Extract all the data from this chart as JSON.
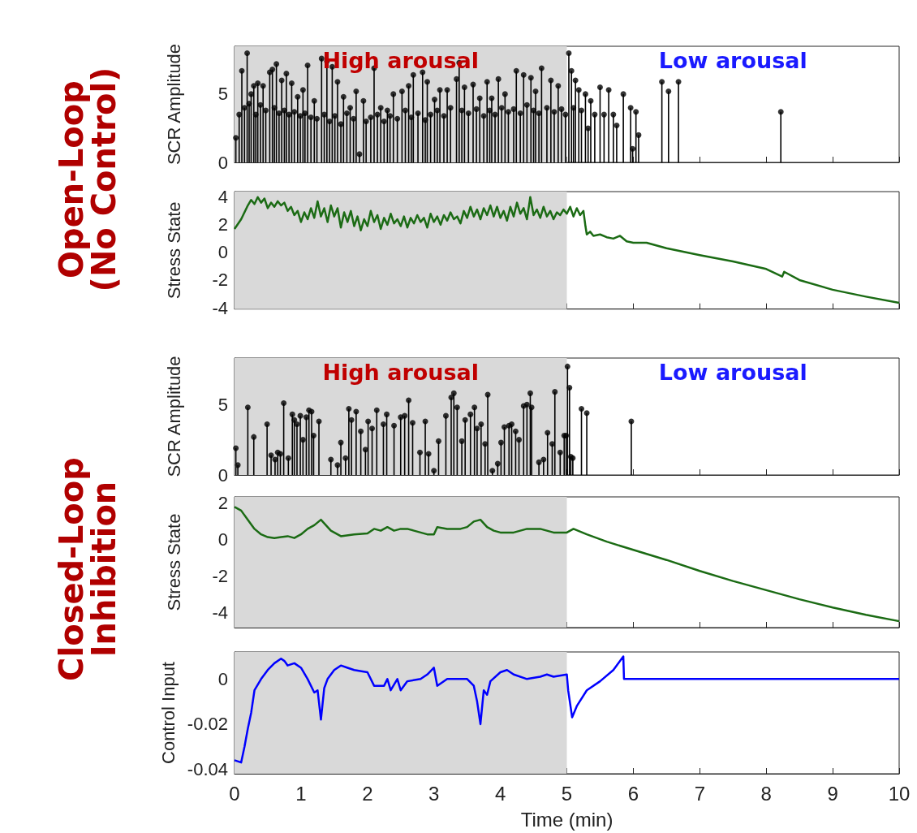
{
  "chart_data": [
    {
      "type": "lollipop",
      "ylabel": "SCR Amplitude",
      "annotations": [
        "Open-Loop (No Control)",
        "High arousal",
        "Low arousal"
      ],
      "xlim": [
        0,
        10
      ],
      "xticks": [
        0,
        1,
        2,
        3,
        4,
        5,
        6,
        7,
        8,
        9,
        10
      ],
      "ylim": [
        0,
        8.5
      ],
      "yticks": [
        0,
        5
      ],
      "tick_labels": "y",
      "grid": false,
      "marker": "circle",
      "bands": [
        {
          "axis": "x",
          "from": 0,
          "to": 5,
          "color": "#d9d9d9"
        }
      ],
      "series": [
        {
          "color": "#000000",
          "x": [
            0.02,
            0.07,
            0.11,
            0.15,
            0.19,
            0.22,
            0.25,
            0.29,
            0.32,
            0.35,
            0.39,
            0.43,
            0.47,
            0.53,
            0.57,
            0.6,
            0.63,
            0.67,
            0.71,
            0.75,
            0.78,
            0.82,
            0.86,
            0.9,
            0.95,
            0.99,
            1.03,
            1.06,
            1.1,
            1.15,
            1.2,
            1.24,
            1.31,
            1.35,
            1.39,
            1.43,
            1.47,
            1.51,
            1.55,
            1.6,
            1.64,
            1.69,
            1.74,
            1.79,
            1.83,
            1.88,
            1.94,
            1.98,
            2.05,
            2.1,
            2.15,
            2.2,
            2.25,
            2.3,
            2.34,
            2.39,
            2.45,
            2.52,
            2.57,
            2.62,
            2.66,
            2.69,
            2.76,
            2.83,
            2.87,
            2.9,
            2.95,
            3.01,
            3.05,
            3.09,
            3.15,
            3.2,
            3.25,
            3.34,
            3.38,
            3.42,
            3.46,
            3.52,
            3.59,
            3.64,
            3.69,
            3.75,
            3.8,
            3.84,
            3.87,
            3.92,
            3.97,
            4.02,
            4.07,
            4.12,
            4.2,
            4.24,
            4.3,
            4.35,
            4.4,
            4.46,
            4.5,
            4.53,
            4.58,
            4.62,
            4.7,
            4.76,
            4.81,
            4.87,
            4.92,
            4.98,
            5.03,
            5.07,
            5.1,
            5.13,
            5.18,
            5.22,
            5.28,
            5.32,
            5.36,
            5.42,
            5.5,
            5.56,
            5.63,
            5.7,
            5.75,
            5.85,
            5.96,
            5.99,
            6.04,
            6.08,
            6.43,
            6.53,
            6.68,
            8.22
          ],
          "values": [
            1.8,
            3.5,
            6.7,
            4.0,
            8.0,
            4.3,
            5.0,
            5.6,
            3.5,
            5.8,
            4.2,
            5.6,
            3.8,
            6.6,
            6.8,
            4.0,
            7.2,
            3.6,
            6.0,
            3.8,
            6.5,
            3.5,
            5.8,
            3.7,
            4.8,
            3.4,
            5.3,
            3.6,
            7.1,
            3.3,
            4.5,
            3.2,
            7.6,
            3.5,
            7.4,
            3.0,
            7.0,
            3.4,
            5.9,
            2.8,
            4.8,
            3.6,
            4.0,
            3.2,
            5.2,
            0.6,
            4.5,
            3.0,
            3.3,
            6.9,
            3.5,
            4.0,
            3.0,
            3.8,
            3.4,
            5.0,
            3.2,
            5.2,
            3.8,
            5.6,
            3.3,
            6.4,
            3.6,
            6.6,
            3.1,
            5.9,
            3.5,
            4.6,
            3.8,
            5.3,
            3.4,
            5.3,
            4.0,
            6.1,
            7.3,
            3.8,
            5.5,
            3.6,
            5.7,
            3.9,
            4.7,
            3.4,
            5.9,
            3.8,
            4.7,
            3.5,
            6.1,
            4.0,
            5.0,
            3.7,
            3.9,
            6.7,
            3.6,
            6.4,
            4.2,
            6.2,
            3.8,
            5.2,
            3.6,
            6.9,
            4.0,
            6.0,
            3.7,
            5.6,
            3.9,
            3.5,
            8.0,
            6.7,
            4.0,
            6.0,
            5.3,
            3.8,
            5.0,
            2.5,
            4.5,
            3.5,
            5.5,
            3.5,
            5.3,
            3.5,
            2.7,
            5.0,
            4.0,
            1.0,
            3.7,
            2.0,
            5.9,
            5.2,
            5.9,
            3.7
          ]
        }
      ]
    },
    {
      "type": "line",
      "ylabel": "Stress State",
      "xlim": [
        0,
        10
      ],
      "xticks": [
        0,
        1,
        2,
        3,
        4,
        5,
        6,
        7,
        8,
        9,
        10
      ],
      "ylim": [
        -4.1,
        4.4
      ],
      "yticks": [
        -4,
        -2,
        0,
        2,
        4
      ],
      "tick_labels": "y",
      "grid": false,
      "line_style": "solid",
      "bands": [
        {
          "axis": "x",
          "from": 0,
          "to": 5,
          "color": "#d9d9d9"
        }
      ],
      "series": [
        {
          "color": "#1b6b14",
          "x": [
            0,
            0.1,
            0.2,
            0.25,
            0.3,
            0.35,
            0.4,
            0.45,
            0.5,
            0.55,
            0.6,
            0.65,
            0.7,
            0.75,
            0.8,
            0.85,
            0.9,
            0.95,
            1.0,
            1.05,
            1.1,
            1.15,
            1.2,
            1.25,
            1.3,
            1.35,
            1.4,
            1.45,
            1.5,
            1.55,
            1.6,
            1.65,
            1.7,
            1.75,
            1.8,
            1.85,
            1.9,
            1.95,
            2.0,
            2.05,
            2.1,
            2.15,
            2.2,
            2.25,
            2.3,
            2.35,
            2.4,
            2.45,
            2.5,
            2.55,
            2.6,
            2.65,
            2.7,
            2.75,
            2.8,
            2.85,
            2.9,
            2.95,
            3.0,
            3.05,
            3.1,
            3.15,
            3.2,
            3.25,
            3.3,
            3.35,
            3.4,
            3.45,
            3.5,
            3.55,
            3.6,
            3.65,
            3.7,
            3.75,
            3.8,
            3.85,
            3.9,
            3.95,
            4.0,
            4.05,
            4.1,
            4.15,
            4.2,
            4.25,
            4.3,
            4.35,
            4.4,
            4.45,
            4.5,
            4.55,
            4.6,
            4.65,
            4.7,
            4.75,
            4.8,
            4.85,
            4.9,
            4.95,
            5.0,
            5.05,
            5.1,
            5.15,
            5.2,
            5.25,
            5.28,
            5.3,
            5.35,
            5.4,
            5.5,
            5.6,
            5.7,
            5.8,
            5.9,
            6.0,
            6.2,
            6.5,
            7.0,
            7.5,
            8.0,
            8.24,
            8.27,
            8.5,
            9.0,
            9.5,
            10
          ],
          "values": [
            1.7,
            2.4,
            3.4,
            3.8,
            3.5,
            4.0,
            3.6,
            3.9,
            3.2,
            3.6,
            3.3,
            3.7,
            3.4,
            3.6,
            3.0,
            3.3,
            2.7,
            3.0,
            2.2,
            2.9,
            2.4,
            3.2,
            2.5,
            3.7,
            2.6,
            3.2,
            2.2,
            3.4,
            2.6,
            3.2,
            1.8,
            2.9,
            2.2,
            3.0,
            1.9,
            2.6,
            1.6,
            2.4,
            1.9,
            3.0,
            2.2,
            2.7,
            1.7,
            2.5,
            2.0,
            2.8,
            2.1,
            2.4,
            1.9,
            2.6,
            1.8,
            2.5,
            2.1,
            2.7,
            2.2,
            2.5,
            1.8,
            2.8,
            2.2,
            2.6,
            2.0,
            2.7,
            2.3,
            2.9,
            2.4,
            2.6,
            2.1,
            3.0,
            2.5,
            3.3,
            2.6,
            3.1,
            2.4,
            3.2,
            2.7,
            3.4,
            2.6,
            3.3,
            2.5,
            3.0,
            2.3,
            3.3,
            2.6,
            3.6,
            2.8,
            3.2,
            2.4,
            4.0,
            2.7,
            3.1,
            2.5,
            3.3,
            2.6,
            3.0,
            2.4,
            2.9,
            2.7,
            3.1,
            2.8,
            3.3,
            2.6,
            3.2,
            2.7,
            3.0,
            1.9,
            1.3,
            1.5,
            1.2,
            1.3,
            1.1,
            1.0,
            1.2,
            0.8,
            0.7,
            0.7,
            0.3,
            -0.2,
            -0.65,
            -1.2,
            -1.75,
            -1.4,
            -2.0,
            -2.7,
            -3.2,
            -3.65
          ]
        }
      ]
    },
    {
      "type": "lollipop",
      "ylabel": "SCR Amplitude",
      "annotations": [
        "Closed-Loop Inhibition",
        "High arousal",
        "Low arousal"
      ],
      "xlim": [
        0,
        10
      ],
      "xticks": [
        0,
        1,
        2,
        3,
        4,
        5,
        6,
        7,
        8,
        9,
        10
      ],
      "ylim": [
        0,
        8.3
      ],
      "yticks": [
        0,
        5
      ],
      "tick_labels": "y",
      "grid": false,
      "marker": "circle",
      "bands": [
        {
          "axis": "x",
          "from": 0,
          "to": 5,
          "color": "#d9d9d9"
        }
      ],
      "series": [
        {
          "color": "#000000",
          "x": [
            0.02,
            0.05,
            0.2,
            0.29,
            0.49,
            0.55,
            0.61,
            0.65,
            0.69,
            0.74,
            0.81,
            0.87,
            0.9,
            0.94,
            0.99,
            1.03,
            1.08,
            1.12,
            1.16,
            1.19,
            1.27,
            1.45,
            1.55,
            1.6,
            1.67,
            1.72,
            1.76,
            1.83,
            1.9,
            1.97,
            2.01,
            2.07,
            2.14,
            2.24,
            2.29,
            2.4,
            2.5,
            2.56,
            2.62,
            2.68,
            2.79,
            2.87,
            2.92,
            3.0,
            3.07,
            3.18,
            3.26,
            3.3,
            3.35,
            3.42,
            3.47,
            3.55,
            3.61,
            3.65,
            3.71,
            3.77,
            3.81,
            3.88,
            3.96,
            4.01,
            4.06,
            4.13,
            4.17,
            4.23,
            4.28,
            4.35,
            4.4,
            4.45,
            4.47,
            4.58,
            4.65,
            4.71,
            4.78,
            4.82,
            4.9,
            4.96,
            4.99,
            5.01,
            5.04,
            5.06,
            5.09,
            5.22,
            5.3,
            5.97
          ],
          "values": [
            1.9,
            0.7,
            4.8,
            2.7,
            3.6,
            1.4,
            1.1,
            1.6,
            1.5,
            5.1,
            1.2,
            4.3,
            3.9,
            3.6,
            4.2,
            2.5,
            4.1,
            4.6,
            4.5,
            2.8,
            3.8,
            1.1,
            0.7,
            2.3,
            1.2,
            4.7,
            3.9,
            4.5,
            3.1,
            1.8,
            3.8,
            3.3,
            4.6,
            3.6,
            4.3,
            3.5,
            4.1,
            4.2,
            5.3,
            3.7,
            1.6,
            3.8,
            1.5,
            0.3,
            2.4,
            4.2,
            5.5,
            5.8,
            4.8,
            2.4,
            3.9,
            4.3,
            4.8,
            3.3,
            3.6,
            2.2,
            5.7,
            0.3,
            0.8,
            2.3,
            3.4,
            3.5,
            3.6,
            3.1,
            2.5,
            4.9,
            5.0,
            5.8,
            4.8,
            0.9,
            1.1,
            3.0,
            2.2,
            5.9,
            1.6,
            2.8,
            2.8,
            7.7,
            6.2,
            1.3,
            1.2,
            4.7,
            4.4,
            3.8
          ]
        }
      ]
    },
    {
      "type": "line",
      "ylabel": "Stress State",
      "xlim": [
        0,
        10
      ],
      "xticks": [
        0,
        1,
        2,
        3,
        4,
        5,
        6,
        7,
        8,
        9,
        10
      ],
      "ylim": [
        -4.8,
        2.35
      ],
      "yticks": [
        -4,
        -2,
        0,
        2
      ],
      "tick_labels": "y",
      "grid": false,
      "line_style": "solid",
      "bands": [
        {
          "axis": "x",
          "from": 0,
          "to": 5,
          "color": "#d9d9d9"
        }
      ],
      "series": [
        {
          "color": "#1b6b14",
          "x": [
            0,
            0.1,
            0.2,
            0.3,
            0.4,
            0.5,
            0.6,
            0.7,
            0.8,
            0.9,
            1.0,
            1.1,
            1.2,
            1.3,
            1.35,
            1.45,
            1.6,
            1.8,
            2.0,
            2.1,
            2.2,
            2.3,
            2.4,
            2.5,
            2.6,
            2.7,
            2.8,
            2.9,
            3.0,
            3.05,
            3.2,
            3.4,
            3.5,
            3.6,
            3.7,
            3.8,
            3.9,
            4.0,
            4.2,
            4.4,
            4.6,
            4.8,
            5.0,
            5.1,
            5.3,
            5.6,
            6.0,
            6.5,
            7.0,
            7.5,
            8.0,
            8.5,
            9.0,
            9.5,
            10
          ],
          "values": [
            1.8,
            1.6,
            1.1,
            0.6,
            0.3,
            0.15,
            0.1,
            0.15,
            0.2,
            0.1,
            0.3,
            0.6,
            0.8,
            1.1,
            0.9,
            0.5,
            0.2,
            0.3,
            0.35,
            0.6,
            0.5,
            0.7,
            0.5,
            0.6,
            0.6,
            0.5,
            0.4,
            0.3,
            0.3,
            0.7,
            0.6,
            0.6,
            0.7,
            1.0,
            1.1,
            0.7,
            0.5,
            0.4,
            0.4,
            0.6,
            0.6,
            0.4,
            0.4,
            0.6,
            0.3,
            -0.1,
            -0.55,
            -1.1,
            -1.7,
            -2.25,
            -2.75,
            -3.25,
            -3.7,
            -4.1,
            -4.45
          ]
        }
      ]
    },
    {
      "type": "line",
      "xlabel": "Time (min)",
      "ylabel": "Control Input",
      "xlim": [
        0,
        10
      ],
      "xticks": [
        0,
        1,
        2,
        3,
        4,
        5,
        6,
        7,
        8,
        9,
        10
      ],
      "ylim": [
        -0.042,
        0.012
      ],
      "yticks": [
        -0.04,
        -0.02,
        0
      ],
      "grid": false,
      "line_style": "solid",
      "bands": [
        {
          "axis": "x",
          "from": 0,
          "to": 5,
          "color": "#d9d9d9"
        }
      ],
      "series": [
        {
          "color": "#0000ff",
          "x": [
            0,
            0.1,
            0.15,
            0.2,
            0.25,
            0.3,
            0.4,
            0.5,
            0.6,
            0.7,
            0.75,
            0.8,
            0.9,
            1.0,
            1.1,
            1.2,
            1.25,
            1.3,
            1.35,
            1.4,
            1.5,
            1.6,
            1.7,
            1.8,
            2.0,
            2.1,
            2.25,
            2.3,
            2.35,
            2.45,
            2.5,
            2.6,
            2.8,
            2.9,
            3.0,
            3.05,
            3.2,
            3.5,
            3.6,
            3.65,
            3.7,
            3.75,
            3.8,
            3.85,
            4.0,
            4.1,
            4.2,
            4.4,
            4.6,
            4.7,
            4.8,
            5.0,
            5.02,
            5.08,
            5.15,
            5.3,
            5.5,
            5.7,
            5.85,
            5.86,
            10
          ],
          "values": [
            -0.036,
            -0.037,
            -0.03,
            -0.022,
            -0.015,
            -0.005,
            0,
            0.004,
            0.007,
            0.009,
            0.008,
            0.006,
            0.007,
            0.005,
            0,
            -0.006,
            -0.005,
            -0.018,
            -0.004,
            0,
            0.004,
            0.006,
            0.005,
            0.004,
            0.003,
            -0.003,
            -0.003,
            0,
            -0.005,
            0,
            -0.005,
            -0.001,
            0,
            0.002,
            0.005,
            -0.003,
            0,
            0,
            -0.003,
            -0.01,
            -0.02,
            -0.005,
            -0.007,
            -0.001,
            0.003,
            0.004,
            0.002,
            0,
            0.001,
            0.002,
            0.001,
            0.002,
            -0.005,
            -0.017,
            -0.012,
            -0.005,
            -0.001,
            0.004,
            0.01,
            0,
            0
          ]
        }
      ]
    }
  ]
}
